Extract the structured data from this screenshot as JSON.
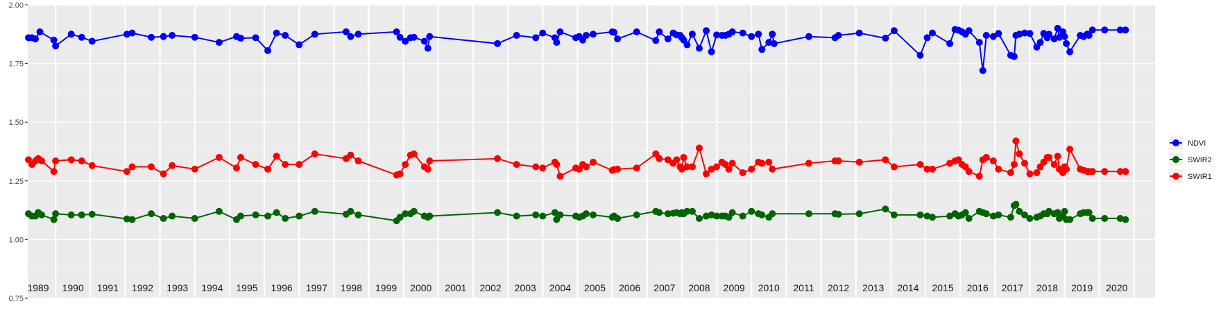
{
  "chart_data": {
    "type": "line",
    "title": "",
    "xlabel": "",
    "ylabel": "",
    "ylim": [
      0.75,
      2.0
    ],
    "y_ticks": [
      "0.75",
      "1.00",
      "1.25",
      "1.50",
      "1.75",
      "2.00"
    ],
    "x_range": [
      1988.7,
      2021.1
    ],
    "year_labels": [
      "1989",
      "1990",
      "1991",
      "1992",
      "1993",
      "1994",
      "1995",
      "1996",
      "1997",
      "1998",
      "1999",
      "2000",
      "2001",
      "2002",
      "2003",
      "2004",
      "2005",
      "2006",
      "2007",
      "2008",
      "2009",
      "2010",
      "2011",
      "2012",
      "2013",
      "2014",
      "2015",
      "2016",
      "2017",
      "2018",
      "2019",
      "2020"
    ],
    "grid": true,
    "legend_position": "right",
    "legend": [
      "NDVI",
      "SWIR2",
      "SWIR1"
    ],
    "colors": {
      "NDVI": "#0000ff",
      "SWIR2": "#006400",
      "SWIR1": "#ff0000"
    },
    "series": [
      {
        "name": "NDVI",
        "x": [
          1988.72,
          1988.82,
          1988.92,
          1989.05,
          1989.45,
          1989.5,
          1989.95,
          1990.25,
          1990.55,
          1991.55,
          1991.7,
          1992.25,
          1992.6,
          1992.85,
          1993.5,
          1994.2,
          1994.7,
          1994.82,
          1995.25,
          1995.6,
          1995.85,
          1996.1,
          1996.5,
          1996.95,
          1997.85,
          1997.98,
          1998.2,
          1999.3,
          1999.4,
          1999.55,
          1999.7,
          1999.8,
          2000.1,
          2000.2,
          2000.25,
          2002.2,
          2002.75,
          2003.3,
          2003.5,
          2003.85,
          2003.9,
          2004.0,
          2004.45,
          2004.55,
          2004.65,
          2004.75,
          2004.95,
          2005.5,
          2005.55,
          2005.65,
          2006.2,
          2006.75,
          2006.85,
          2007.1,
          2007.25,
          2007.35,
          2007.45,
          2007.5,
          2007.55,
          2007.65,
          2007.8,
          2008.0,
          2008.2,
          2008.35,
          2008.5,
          2008.65,
          2008.75,
          2008.85,
          2008.95,
          2009.25,
          2009.5,
          2009.7,
          2009.8,
          2010.0,
          2010.1,
          2010.15,
          2011.15,
          2011.9,
          2012.0,
          2012.6,
          2013.35,
          2013.6,
          2014.35,
          2014.55,
          2014.7,
          2015.2,
          2015.35,
          2015.45,
          2015.55,
          2015.65,
          2015.75,
          2016.05,
          2016.15,
          2016.25,
          2016.45,
          2016.6,
          2016.95,
          2017.05,
          2017.1,
          2017.2,
          2017.35,
          2017.5,
          2017.7,
          2017.8,
          2017.9,
          2018.0,
          2018.05,
          2018.2,
          2018.3,
          2018.35,
          2018.45,
          2018.5,
          2018.55,
          2018.65,
          2018.95,
          2019.05,
          2019.15,
          2019.2,
          2019.3,
          2019.65,
          2020.1,
          2020.25
        ],
        "values": [
          1.86,
          1.86,
          1.855,
          1.885,
          1.85,
          1.825,
          1.875,
          1.862,
          1.845,
          1.875,
          1.88,
          1.862,
          1.865,
          1.87,
          1.862,
          1.84,
          1.865,
          1.858,
          1.86,
          1.805,
          1.88,
          1.87,
          1.83,
          1.875,
          1.885,
          1.865,
          1.875,
          1.885,
          1.862,
          1.845,
          1.86,
          1.862,
          1.845,
          1.815,
          1.865,
          1.835,
          1.87,
          1.86,
          1.88,
          1.86,
          1.84,
          1.885,
          1.86,
          1.865,
          1.85,
          1.87,
          1.875,
          1.885,
          1.883,
          1.855,
          1.885,
          1.848,
          1.885,
          1.855,
          1.88,
          1.872,
          1.87,
          1.86,
          1.85,
          1.83,
          1.875,
          1.815,
          1.89,
          1.8,
          1.872,
          1.87,
          1.87,
          1.875,
          1.885,
          1.88,
          1.865,
          1.875,
          1.81,
          1.84,
          1.875,
          1.835,
          1.865,
          1.86,
          1.87,
          1.88,
          1.858,
          1.89,
          1.785,
          1.86,
          1.88,
          1.835,
          1.895,
          1.892,
          1.885,
          1.875,
          1.89,
          1.84,
          1.72,
          1.87,
          1.865,
          1.878,
          1.785,
          1.78,
          1.87,
          1.875,
          1.88,
          1.878,
          1.82,
          1.84,
          1.878,
          1.86,
          1.875,
          1.855,
          1.9,
          1.862,
          1.885,
          1.865,
          1.835,
          1.8,
          1.87,
          1.865,
          1.875,
          1.87,
          1.893,
          1.893,
          1.893,
          1.893
        ]
      },
      {
        "name": "SWIR2",
        "x": [
          1988.72,
          1988.82,
          1988.92,
          1989.0,
          1989.1,
          1989.45,
          1989.5,
          1989.95,
          1990.25,
          1990.55,
          1991.55,
          1991.7,
          1992.25,
          1992.6,
          1992.85,
          1993.5,
          1994.2,
          1994.7,
          1994.82,
          1995.25,
          1995.6,
          1995.85,
          1996.1,
          1996.5,
          1996.95,
          1997.85,
          1997.98,
          1998.2,
          1999.3,
          1999.4,
          1999.55,
          1999.7,
          1999.8,
          2000.1,
          2000.2,
          2000.25,
          2002.2,
          2002.75,
          2003.3,
          2003.5,
          2003.85,
          2003.9,
          2004.0,
          2004.45,
          2004.55,
          2004.65,
          2004.75,
          2004.95,
          2005.5,
          2005.55,
          2005.65,
          2006.2,
          2006.75,
          2006.85,
          2007.1,
          2007.25,
          2007.35,
          2007.45,
          2007.5,
          2007.55,
          2007.65,
          2007.8,
          2008.0,
          2008.2,
          2008.35,
          2008.5,
          2008.65,
          2008.75,
          2008.85,
          2008.95,
          2009.25,
          2009.5,
          2009.7,
          2009.8,
          2010.0,
          2010.1,
          2011.15,
          2011.9,
          2012.0,
          2012.6,
          2013.35,
          2013.6,
          2014.35,
          2014.55,
          2014.7,
          2015.2,
          2015.35,
          2015.45,
          2015.55,
          2015.65,
          2015.75,
          2016.05,
          2016.15,
          2016.25,
          2016.45,
          2016.6,
          2016.95,
          2017.05,
          2017.1,
          2017.2,
          2017.35,
          2017.5,
          2017.7,
          2017.8,
          2017.9,
          2018.0,
          2018.05,
          2018.2,
          2018.3,
          2018.35,
          2018.45,
          2018.5,
          2018.55,
          2018.65,
          2018.95,
          2019.05,
          2019.15,
          2019.2,
          2019.3,
          2019.65,
          2020.1,
          2020.25
        ],
        "values": [
          1.11,
          1.1,
          1.1,
          1.115,
          1.105,
          1.085,
          1.11,
          1.105,
          1.105,
          1.108,
          1.088,
          1.085,
          1.11,
          1.09,
          1.1,
          1.09,
          1.12,
          1.085,
          1.1,
          1.105,
          1.1,
          1.115,
          1.09,
          1.1,
          1.12,
          1.108,
          1.12,
          1.105,
          1.08,
          1.095,
          1.11,
          1.11,
          1.12,
          1.1,
          1.095,
          1.1,
          1.115,
          1.1,
          1.105,
          1.1,
          1.115,
          1.085,
          1.105,
          1.1,
          1.095,
          1.1,
          1.11,
          1.105,
          1.095,
          1.1,
          1.09,
          1.105,
          1.12,
          1.115,
          1.11,
          1.112,
          1.115,
          1.11,
          1.115,
          1.11,
          1.12,
          1.12,
          1.09,
          1.1,
          1.105,
          1.1,
          1.1,
          1.1,
          1.095,
          1.115,
          1.1,
          1.12,
          1.11,
          1.105,
          1.095,
          1.11,
          1.11,
          1.11,
          1.108,
          1.11,
          1.13,
          1.105,
          1.105,
          1.1,
          1.095,
          1.1,
          1.11,
          1.1,
          1.105,
          1.115,
          1.09,
          1.12,
          1.115,
          1.11,
          1.1,
          1.105,
          1.095,
          1.145,
          1.15,
          1.12,
          1.105,
          1.09,
          1.095,
          1.1,
          1.11,
          1.11,
          1.12,
          1.11,
          1.115,
          1.09,
          1.1,
          1.12,
          1.085,
          1.085,
          1.11,
          1.115,
          1.115,
          1.115,
          1.09,
          1.09,
          1.09,
          1.085
        ]
      },
      {
        "name": "SWIR1",
        "x": [
          1988.72,
          1988.82,
          1988.92,
          1989.0,
          1989.1,
          1989.45,
          1989.5,
          1989.95,
          1990.25,
          1990.55,
          1991.55,
          1991.7,
          1992.25,
          1992.6,
          1992.85,
          1993.5,
          1994.2,
          1994.7,
          1994.82,
          1995.25,
          1995.6,
          1995.85,
          1996.1,
          1996.5,
          1996.95,
          1997.85,
          1997.98,
          1998.2,
          1999.3,
          1999.4,
          1999.55,
          1999.7,
          1999.8,
          2000.1,
          2000.2,
          2000.25,
          2002.2,
          2002.75,
          2003.3,
          2003.5,
          2003.85,
          2003.9,
          2004.0,
          2004.45,
          2004.55,
          2004.65,
          2004.75,
          2004.95,
          2005.5,
          2005.55,
          2005.65,
          2006.2,
          2006.75,
          2006.85,
          2007.1,
          2007.25,
          2007.35,
          2007.45,
          2007.5,
          2007.55,
          2007.65,
          2007.8,
          2008.0,
          2008.2,
          2008.35,
          2008.5,
          2008.65,
          2008.75,
          2008.85,
          2008.95,
          2009.25,
          2009.5,
          2009.7,
          2009.8,
          2010.0,
          2010.1,
          2011.15,
          2011.9,
          2012.0,
          2012.6,
          2013.35,
          2013.6,
          2014.35,
          2014.55,
          2014.7,
          2015.2,
          2015.35,
          2015.45,
          2015.55,
          2015.65,
          2015.75,
          2016.05,
          2016.15,
          2016.25,
          2016.45,
          2016.6,
          2016.95,
          2017.05,
          2017.1,
          2017.2,
          2017.35,
          2017.5,
          2017.7,
          2017.8,
          2017.9,
          2018.0,
          2018.05,
          2018.2,
          2018.3,
          2018.35,
          2018.45,
          2018.5,
          2018.55,
          2018.65,
          2018.95,
          2019.05,
          2019.15,
          2019.2,
          2019.3,
          2019.65,
          2020.1,
          2020.25
        ],
        "values": [
          1.34,
          1.32,
          1.335,
          1.345,
          1.335,
          1.29,
          1.335,
          1.34,
          1.335,
          1.315,
          1.29,
          1.31,
          1.31,
          1.28,
          1.315,
          1.3,
          1.35,
          1.305,
          1.35,
          1.32,
          1.3,
          1.355,
          1.32,
          1.32,
          1.365,
          1.345,
          1.36,
          1.335,
          1.275,
          1.28,
          1.32,
          1.36,
          1.365,
          1.31,
          1.3,
          1.335,
          1.345,
          1.32,
          1.31,
          1.305,
          1.33,
          1.32,
          1.27,
          1.305,
          1.3,
          1.32,
          1.31,
          1.33,
          1.295,
          1.298,
          1.3,
          1.305,
          1.365,
          1.345,
          1.34,
          1.325,
          1.34,
          1.31,
          1.3,
          1.35,
          1.31,
          1.31,
          1.39,
          1.28,
          1.3,
          1.31,
          1.33,
          1.32,
          1.3,
          1.325,
          1.285,
          1.3,
          1.33,
          1.325,
          1.33,
          1.3,
          1.325,
          1.335,
          1.335,
          1.33,
          1.34,
          1.31,
          1.32,
          1.3,
          1.3,
          1.325,
          1.335,
          1.34,
          1.32,
          1.31,
          1.29,
          1.27,
          1.34,
          1.35,
          1.335,
          1.3,
          1.285,
          1.32,
          1.42,
          1.365,
          1.325,
          1.28,
          1.285,
          1.31,
          1.33,
          1.35,
          1.35,
          1.32,
          1.355,
          1.3,
          1.285,
          1.31,
          1.3,
          1.385,
          1.3,
          1.295,
          1.29,
          1.29,
          1.29,
          1.29,
          1.29,
          1.29
        ]
      }
    ]
  }
}
